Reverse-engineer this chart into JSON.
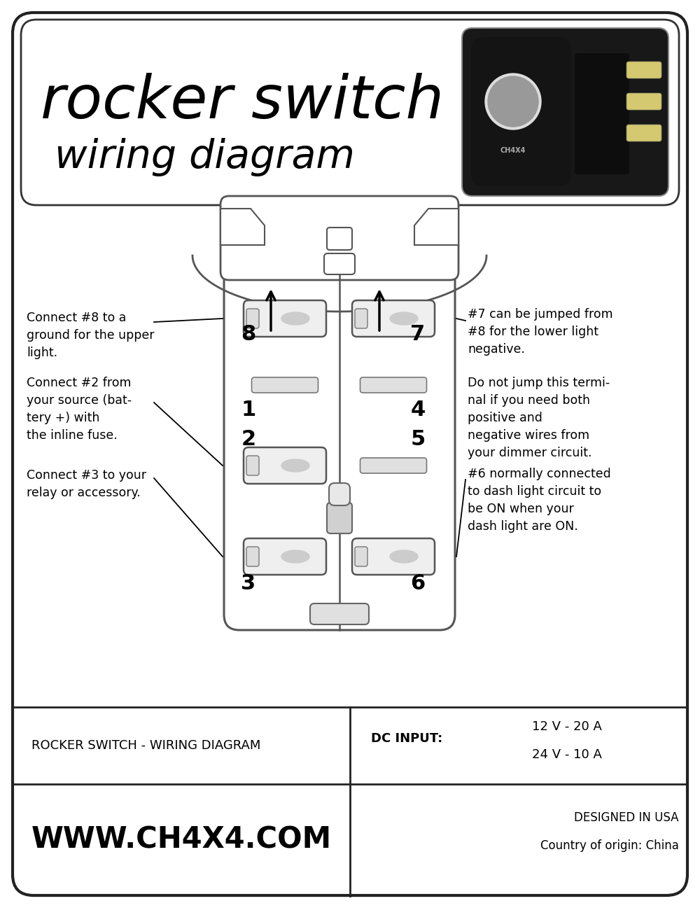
{
  "title_line1": "rocker switch",
  "title_line2": "wiring diagram",
  "bg_color": "#ffffff",
  "border_color": "#222222",
  "footer_text1": "ROCKER SWITCH - WIRING DIAGRAM",
  "footer_dc_label": "DC INPUT:",
  "footer_website": "WWW.CH4X4.COM",
  "annotation_left1": "Connect #8 to a\nground for the upper\nlight.",
  "annotation_left2": "Connect #2 from\nyour source (bat-\ntery +) with\nthe inline fuse.",
  "annotation_left3": "Connect #3 to your\nrelay or accessory.",
  "annotation_right1": "#7 can be jumped from\n#8 for the lower light\nnegative.",
  "annotation_right2": "Do not jump this termi-\nnal if you need both\npositive and\nnegative wires from\nyour dimmer circuit.",
  "annotation_right3": "#6 normally connected\nto dash light circuit to\nbe ON when your\ndash light are ON.",
  "sw_outline": "#555555",
  "sw_fill": "#ffffff",
  "sw_light_gray": "#e0e0e0",
  "sw_dark_gray": "#aaaaaa"
}
